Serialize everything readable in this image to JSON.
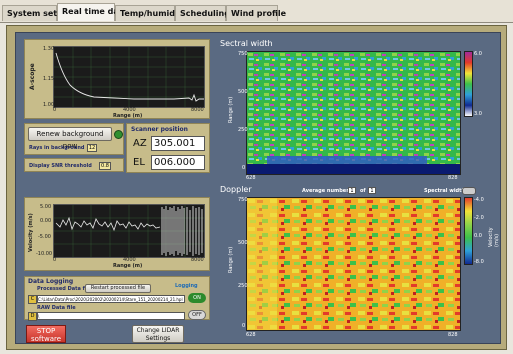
{
  "tabs": [
    {
      "label": "System setup"
    },
    {
      "label": "Real time data"
    },
    {
      "label": "Temp/humidity"
    },
    {
      "label": "Scheduling"
    },
    {
      "label": "Wind profile"
    }
  ],
  "background_plot": {
    "ylabel": "A-scope",
    "xlabel": "Range (m)",
    "yticks": [
      "1.30",
      "1.25",
      "1.20",
      "1.15",
      "1.10",
      "1.05",
      "1.00"
    ],
    "xticks": [
      "0",
      "1000",
      "2000",
      "3000",
      "4000",
      "5000",
      "6000",
      "7000",
      "8000"
    ]
  },
  "controls": {
    "renew_label": "Renew background now",
    "rays_label": "Rays in background",
    "rays_value": "12",
    "snr_label": "Display SNR threshold",
    "snr_value": "0.8"
  },
  "scanner": {
    "title": "Scanner position",
    "az_label": "AZ",
    "az_value": "305.001",
    "el_label": "EL",
    "el_value": "006.000"
  },
  "velocity_plot": {
    "ylabel": "Velocity (m/s)",
    "xlabel": "Range (m)",
    "yticks": [
      "5.00",
      "0.00",
      "-5.00",
      "-10.00"
    ],
    "xticks": [
      "0",
      "1000",
      "2000",
      "3000",
      "4000",
      "5000",
      "6000",
      "7000",
      "8000"
    ]
  },
  "logging": {
    "title": "Data Logging",
    "processed_label": "Processed Data file",
    "restart_label": "Restart processed file",
    "logging_label": "Logging",
    "processed_path": "C:\\Lidar\\Data\\Proc\\2020\\202002\\20200214\\Stare_151_20200214_21.hpl",
    "raw_label": "RAW Data file",
    "raw_path": "\\",
    "toggle_on": "ON",
    "toggle_off": "OFF"
  },
  "buttons": {
    "stop_label": "STOP software",
    "change_label": "Change LIDAR Settings"
  },
  "spectral": {
    "title": "Sectral width",
    "ylabel": "Range (m)",
    "yticks": [
      "750",
      "500",
      "250",
      "0"
    ],
    "xticks": [
      "628",
      "828"
    ],
    "cbar_ticks": [
      "6.0",
      "3.0"
    ]
  },
  "doppler": {
    "title": "Doppler",
    "avg_label": "Average number",
    "avg_value": "1",
    "of_label": "of",
    "of_value": "1",
    "spectral_toggle": "Spectral width",
    "ylabel": "Range (m)",
    "yticks": [
      "750",
      "500",
      "250",
      "0"
    ],
    "xticks": [
      "628",
      "828"
    ],
    "cbar_ticks": [
      "-4.0",
      "-2.0",
      "0.0",
      "-8.0"
    ],
    "cbar_label": "Velocity (m/s)"
  },
  "colors": {
    "frame": "#b6ab7b",
    "inner": "#5a6a82",
    "stop": "#e04b40"
  }
}
